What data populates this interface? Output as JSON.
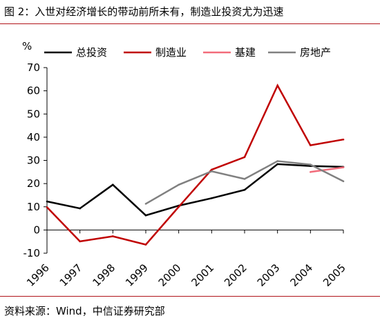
{
  "title": "图 2：入世对经济增长的带动前所未有，制造业投资尤为迅速",
  "source": "资料来源：Wind，中信证券研究部",
  "chart_data": {
    "type": "line",
    "ylabel": "%",
    "xlabel": "",
    "categories": [
      "1996",
      "1997",
      "1998",
      "1999",
      "2000",
      "2001",
      "2002",
      "2003",
      "2004",
      "2005"
    ],
    "ylim": [
      -10,
      70
    ],
    "yticks": [
      -10,
      0,
      10,
      20,
      30,
      40,
      50,
      60,
      70
    ],
    "grid": false,
    "legend_position": "top",
    "series": [
      {
        "name": "总投资",
        "color": "#000000",
        "values": [
          12.3,
          9.3,
          19.5,
          6.3,
          10.5,
          13.7,
          17.3,
          28.4,
          27.6,
          27.2
        ]
      },
      {
        "name": "制造业",
        "color": "#c00000",
        "values": [
          9.8,
          -4.9,
          -2.7,
          -6.3,
          10.0,
          26.0,
          31.4,
          62.3,
          36.5,
          39.0
        ]
      },
      {
        "name": "基建",
        "color": "#f26b7a",
        "values": [
          null,
          null,
          null,
          null,
          null,
          null,
          null,
          null,
          25.0,
          27.0
        ]
      },
      {
        "name": "房地产",
        "color": "#808080",
        "values": [
          null,
          null,
          null,
          11.3,
          19.5,
          25.3,
          22.0,
          29.7,
          28.2,
          21.0
        ]
      }
    ]
  }
}
